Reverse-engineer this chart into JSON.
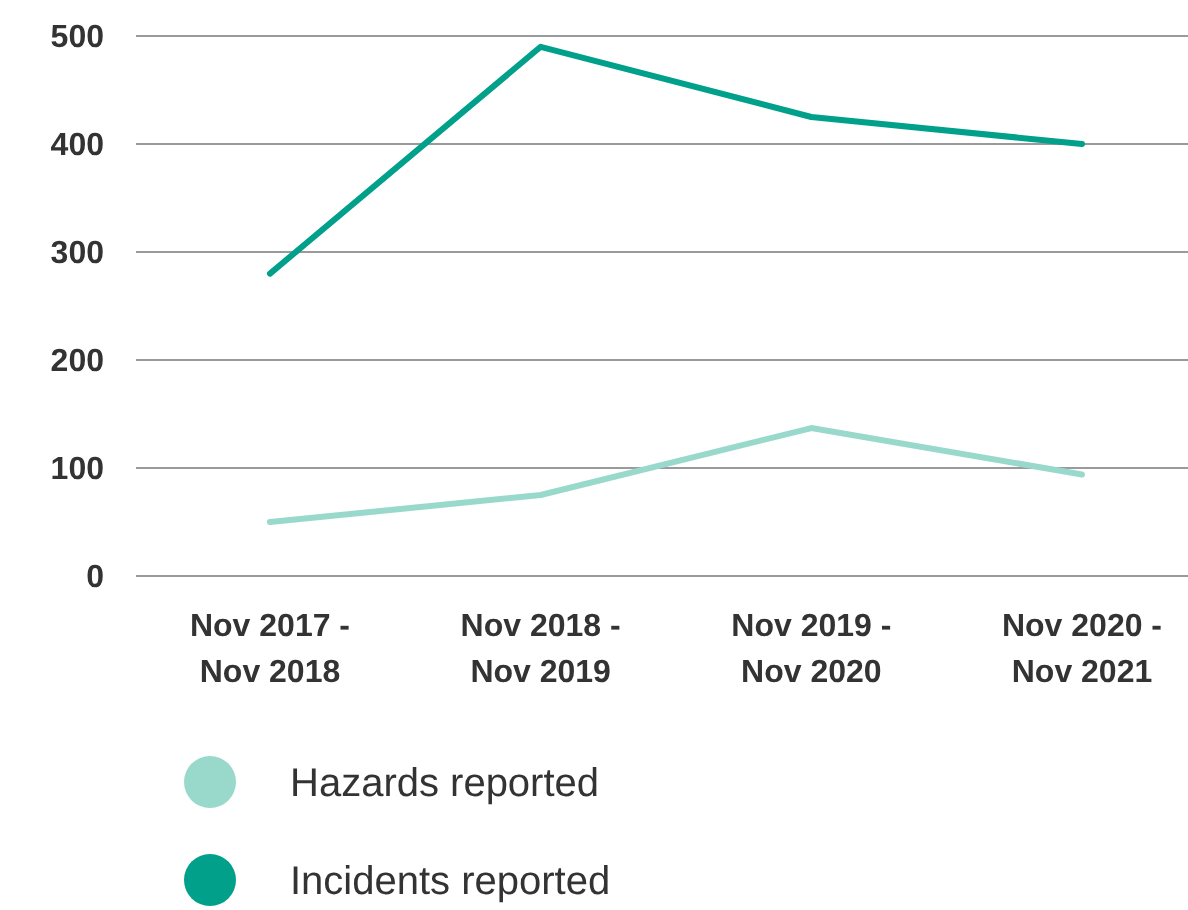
{
  "chart_data": {
    "type": "line",
    "categories": [
      "Nov 2017 - Nov 2018",
      "Nov 2018 - Nov 2019",
      "Nov 2019 - Nov 2020",
      "Nov 2020 - Nov 2021"
    ],
    "series": [
      {
        "name": "Hazards reported",
        "color": "#99d9cc",
        "values": [
          50,
          75,
          137,
          94
        ]
      },
      {
        "name": "Incidents reported",
        "color": "#00a08a",
        "values": [
          280,
          490,
          425,
          400
        ]
      }
    ],
    "ylim": [
      0,
      500
    ],
    "yticks": [
      0,
      100,
      200,
      300,
      400,
      500
    ],
    "grid": "y",
    "legend": "bottom left",
    "marker": "none",
    "line_style": "solid"
  }
}
